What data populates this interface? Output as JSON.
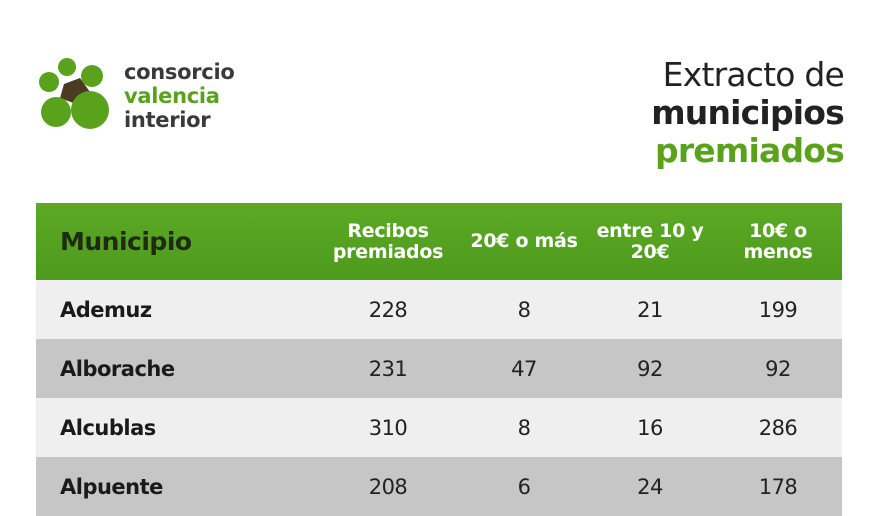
{
  "logo": {
    "line1": "consorcio",
    "line2": "valencia",
    "line3": "interior",
    "colors": {
      "green": "#5aa21c",
      "dark": "#3a3a3a"
    }
  },
  "heading": {
    "line1": "Extracto de",
    "line2": "municipios",
    "line3": "premiados"
  },
  "table": {
    "headers": [
      "Municipio",
      "Recibos premiados",
      "20€ o más",
      "entre 10 y 20€",
      "10€ o menos"
    ],
    "rows": [
      [
        "Ademuz",
        "228",
        "8",
        "21",
        "199"
      ],
      [
        "Alborache",
        "231",
        "47",
        "92",
        "92"
      ],
      [
        "Alcublas",
        "310",
        "8",
        "16",
        "286"
      ],
      [
        "Alpuente",
        "208",
        "6",
        "24",
        "178"
      ]
    ],
    "colors": {
      "header_bg": "#55a220",
      "row_light": "#efefef",
      "row_dark": "#c6c6c6"
    }
  }
}
